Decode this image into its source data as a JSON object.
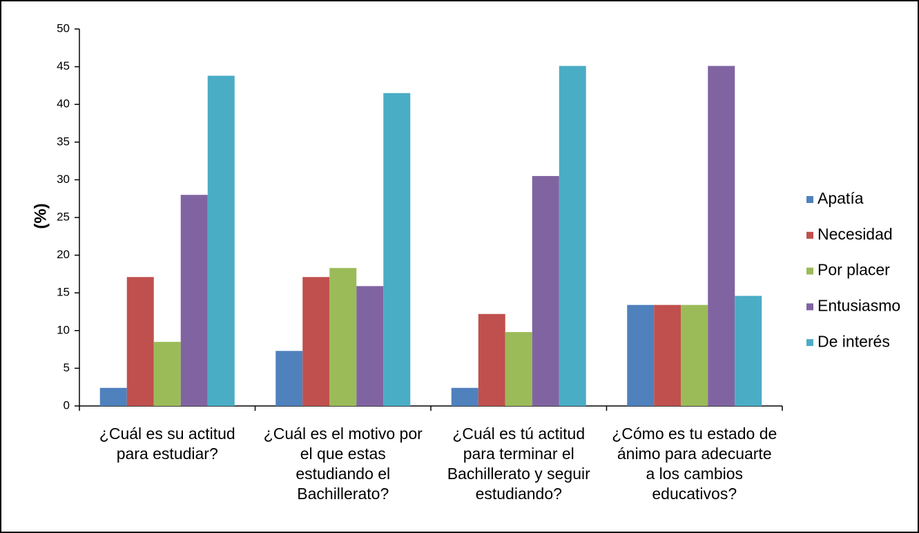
{
  "chart_data": {
    "type": "bar",
    "y_label": "(%)",
    "categories": [
      "¿Cuál es su actitud para estudiar?",
      "¿Cuál es el motivo por el que estas estudiando el Bachillerato?",
      "¿Cuál es tú actitud para terminar el Bachillerato y seguir estudiando?",
      "¿Cómo es tu estado de ánimo para adecuarte a los cambios educativos?"
    ],
    "series": [
      {
        "name": "Apatía",
        "color": "#4f81bd",
        "values": [
          2.4,
          7.3,
          2.4,
          13.4
        ]
      },
      {
        "name": "Necesidad",
        "color": "#c0504d",
        "values": [
          17.1,
          17.1,
          12.2,
          13.4
        ]
      },
      {
        "name": "Por placer",
        "color": "#9bbb59",
        "values": [
          8.5,
          18.3,
          9.8,
          13.4
        ]
      },
      {
        "name": "Entusiasmo",
        "color": "#8064a2",
        "values": [
          28,
          15.9,
          30.5,
          45.1
        ]
      },
      {
        "name": "De interés",
        "color": "#4bacc6",
        "values": [
          43.8,
          41.5,
          45.1,
          14.6
        ]
      }
    ],
    "ylim": [
      0,
      50
    ],
    "yticks": [
      0,
      5,
      10,
      15,
      20,
      25,
      30,
      35,
      40,
      45,
      50
    ],
    "grid": false,
    "legend": "right"
  }
}
